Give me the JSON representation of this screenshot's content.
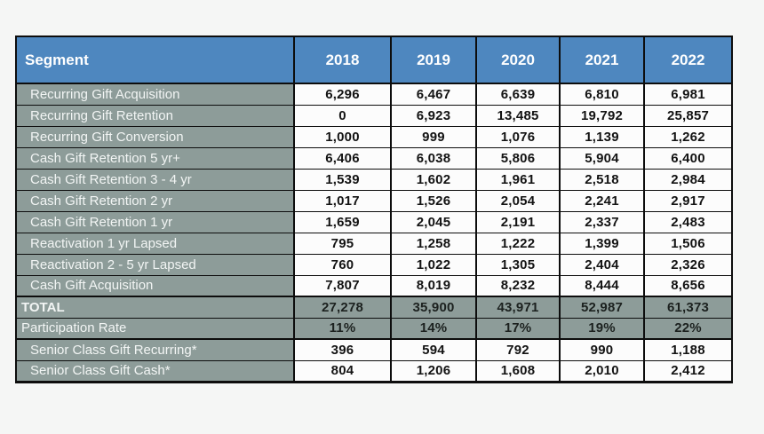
{
  "colors": {
    "header_bg": "#4e87bf",
    "segment_bg": "#8d9c99",
    "cell_bg": "#fcfcfc",
    "border": "#0d0d0d",
    "page_bg": "#f5f6f5",
    "header_text": "#ffffff",
    "segment_text": "#f2f5f4",
    "value_text": "#131313"
  },
  "table": {
    "header": {
      "segment_label": "Segment",
      "years": [
        "2018",
        "2019",
        "2020",
        "2021",
        "2022"
      ]
    },
    "rows": [
      {
        "type": "normal",
        "label": "Recurring Gift Acquisition",
        "values": [
          "6,296",
          "6,467",
          "6,639",
          "6,810",
          "6,981"
        ]
      },
      {
        "type": "normal",
        "label": "Recurring Gift Retention",
        "values": [
          "0",
          "6,923",
          "13,485",
          "19,792",
          "25,857"
        ]
      },
      {
        "type": "normal",
        "label": "Recurring Gift Conversion",
        "values": [
          "1,000",
          "999",
          "1,076",
          "1,139",
          "1,262"
        ]
      },
      {
        "type": "normal",
        "label": "Cash Gift Retention 5 yr+",
        "values": [
          "6,406",
          "6,038",
          "5,806",
          "5,904",
          "6,400"
        ]
      },
      {
        "type": "normal",
        "label": "Cash Gift Retention 3 - 4 yr",
        "values": [
          "1,539",
          "1,602",
          "1,961",
          "2,518",
          "2,984"
        ]
      },
      {
        "type": "normal",
        "label": "Cash Gift Retention 2 yr",
        "values": [
          "1,017",
          "1,526",
          "2,054",
          "2,241",
          "2,917"
        ]
      },
      {
        "type": "normal",
        "label": "Cash Gift Retention 1 yr",
        "values": [
          "1,659",
          "2,045",
          "2,191",
          "2,337",
          "2,483"
        ]
      },
      {
        "type": "normal",
        "label": "Reactivation 1 yr Lapsed",
        "values": [
          "795",
          "1,258",
          "1,222",
          "1,399",
          "1,506"
        ]
      },
      {
        "type": "normal",
        "label": "Reactivation 2 - 5 yr Lapsed",
        "values": [
          "760",
          "1,022",
          "1,305",
          "2,404",
          "2,326"
        ]
      },
      {
        "type": "normal",
        "label": "Cash Gift Acquisition",
        "values": [
          "7,807",
          "8,019",
          "8,232",
          "8,444",
          "8,656"
        ]
      },
      {
        "type": "total",
        "label": "TOTAL",
        "values": [
          "27,278",
          "35,900",
          "43,971",
          "52,987",
          "61,373"
        ]
      },
      {
        "type": "rate",
        "label": "Participation Rate",
        "values": [
          "11%",
          "14%",
          "17%",
          "19%",
          "22%"
        ]
      },
      {
        "type": "senior",
        "label": "Senior Class Gift Recurring*",
        "values": [
          "396",
          "594",
          "792",
          "990",
          "1,188"
        ]
      },
      {
        "type": "senior",
        "label": "Senior Class Gift Cash*",
        "values": [
          "804",
          "1,206",
          "1,608",
          "2,010",
          "2,412"
        ]
      }
    ]
  },
  "chart_data": {
    "type": "table",
    "title": "",
    "columns": [
      "Segment",
      "2018",
      "2019",
      "2020",
      "2021",
      "2022"
    ],
    "series": [
      {
        "name": "Recurring Gift Acquisition",
        "values": [
          6296,
          6467,
          6639,
          6810,
          6981
        ]
      },
      {
        "name": "Recurring Gift Retention",
        "values": [
          0,
          6923,
          13485,
          19792,
          25857
        ]
      },
      {
        "name": "Recurring Gift Conversion",
        "values": [
          1000,
          999,
          1076,
          1139,
          1262
        ]
      },
      {
        "name": "Cash Gift Retention 5 yr+",
        "values": [
          6406,
          6038,
          5806,
          5904,
          6400
        ]
      },
      {
        "name": "Cash Gift Retention 3 - 4 yr",
        "values": [
          1539,
          1602,
          1961,
          2518,
          2984
        ]
      },
      {
        "name": "Cash Gift Retention 2 yr",
        "values": [
          1017,
          1526,
          2054,
          2241,
          2917
        ]
      },
      {
        "name": "Cash Gift Retention 1 yr",
        "values": [
          1659,
          2045,
          2191,
          2337,
          2483
        ]
      },
      {
        "name": "Reactivation 1 yr Lapsed",
        "values": [
          795,
          1258,
          1222,
          1399,
          1506
        ]
      },
      {
        "name": "Reactivation 2 - 5 yr Lapsed",
        "values": [
          760,
          1022,
          1305,
          2404,
          2326
        ]
      },
      {
        "name": "Cash Gift Acquisition",
        "values": [
          7807,
          8019,
          8232,
          8444,
          8656
        ]
      },
      {
        "name": "TOTAL",
        "values": [
          27278,
          35900,
          43971,
          52987,
          61373
        ]
      },
      {
        "name": "Participation Rate",
        "values": [
          "11%",
          "14%",
          "17%",
          "19%",
          "22%"
        ]
      },
      {
        "name": "Senior Class Gift Recurring*",
        "values": [
          396,
          594,
          792,
          990,
          1188
        ]
      },
      {
        "name": "Senior Class Gift Cash*",
        "values": [
          804,
          1206,
          1608,
          2010,
          2412
        ]
      }
    ],
    "x": [
      "2018",
      "2019",
      "2020",
      "2021",
      "2022"
    ]
  }
}
